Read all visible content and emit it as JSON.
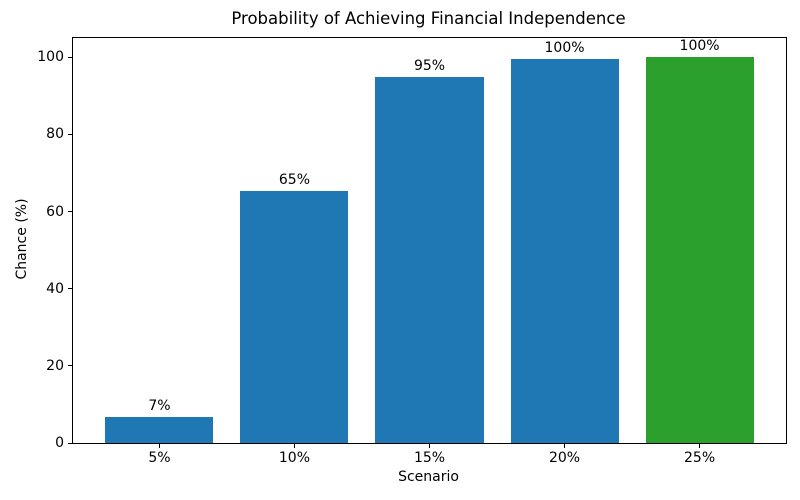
{
  "chart_data": {
    "type": "bar",
    "title": "Probability of Achieving Financial Independence",
    "xlabel": "Scenario",
    "ylabel": "Chance (%)",
    "categories": [
      "5%",
      "10%",
      "15%",
      "20%",
      "25%"
    ],
    "values": [
      6.7,
      65.3,
      95.0,
      99.5,
      100.0
    ],
    "bar_labels": [
      "7%",
      "65%",
      "95%",
      "100%",
      "100%"
    ],
    "bar_colors": [
      "#1f77b4",
      "#1f77b4",
      "#1f77b4",
      "#1f77b4",
      "#2ca02c"
    ],
    "yticks": [
      0,
      20,
      40,
      60,
      80,
      100
    ],
    "ylim": [
      0,
      105
    ],
    "grid": false,
    "legend": false,
    "background_color": "#ffffff",
    "spine_color": "#000000",
    "text_color": "#000000"
  }
}
